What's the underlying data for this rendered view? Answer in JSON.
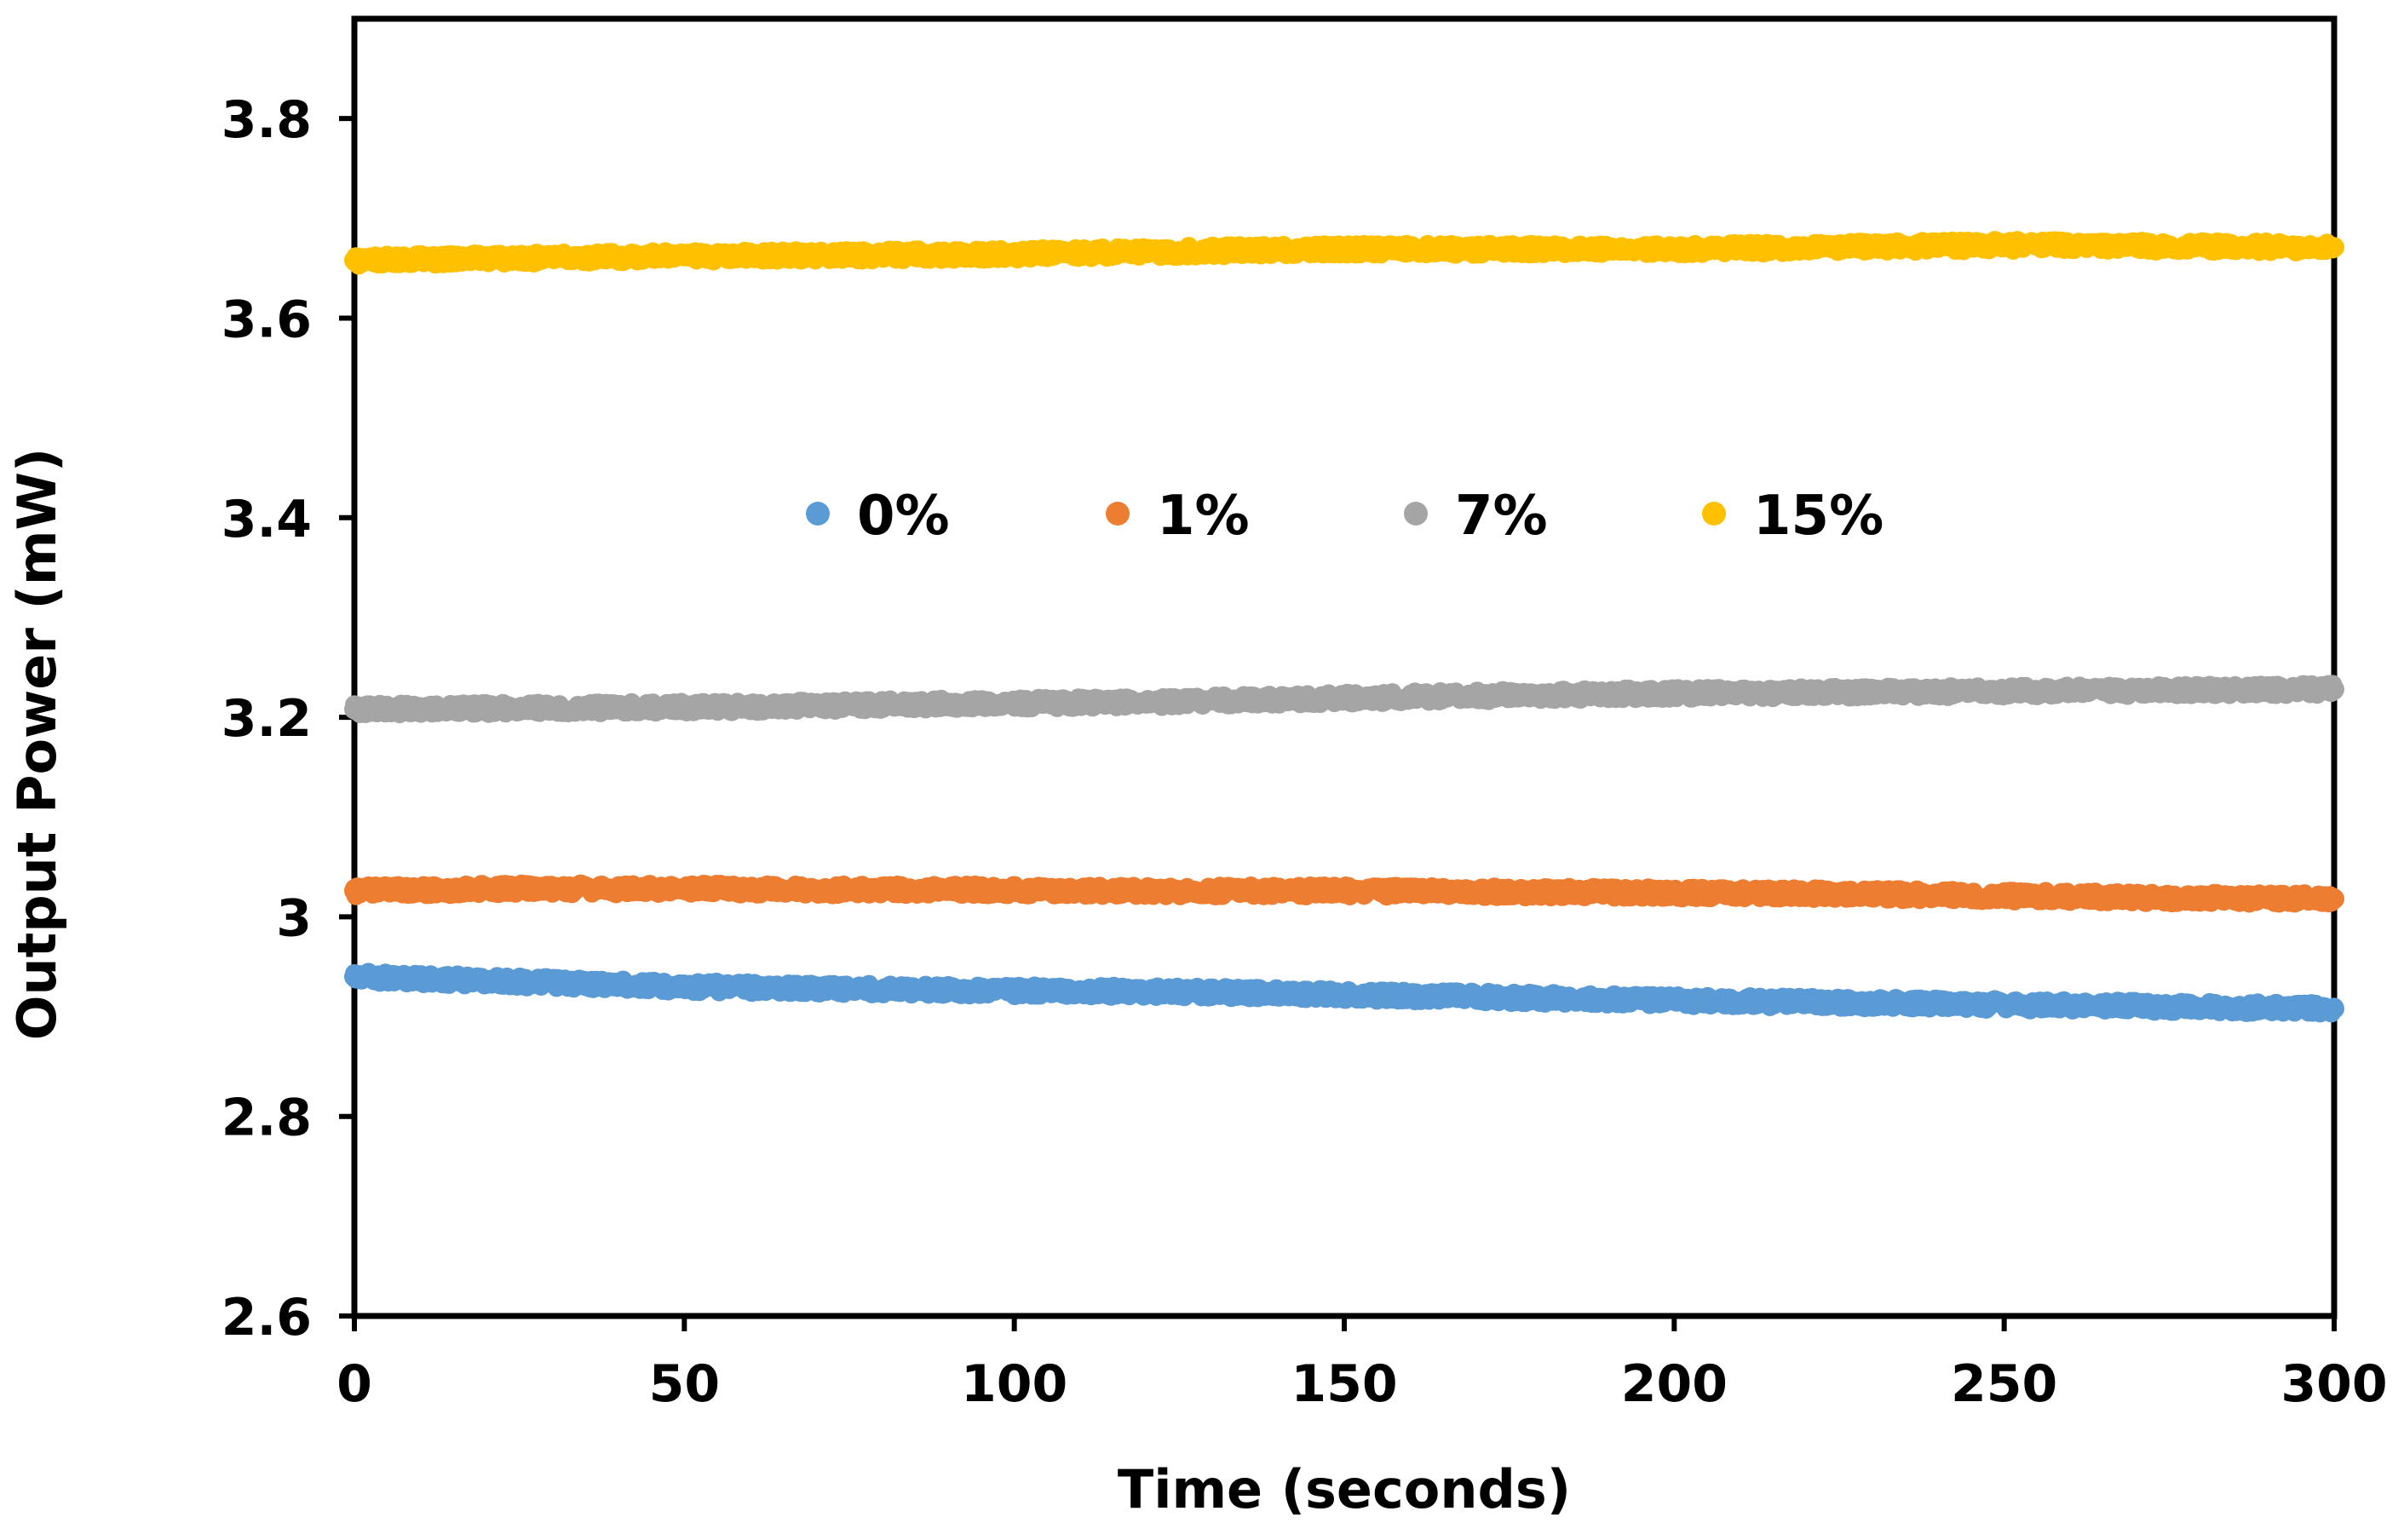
{
  "chart_data": {
    "type": "scatter",
    "title": "",
    "xlabel": "Time (seconds)",
    "ylabel": "Output Power (mW)",
    "xlim": [
      0,
      300
    ],
    "ylim": [
      2.6,
      3.9
    ],
    "xticks": [
      0,
      50,
      100,
      150,
      200,
      250,
      300
    ],
    "yticks": [
      2.6,
      2.8,
      3.0,
      3.2,
      3.4,
      3.6,
      3.8
    ],
    "xtick_labels": [
      "0",
      "50",
      "100",
      "150",
      "200",
      "250",
      "300"
    ],
    "ytick_labels": [
      "2.6",
      "2.8",
      "3",
      "3.2",
      "3.4",
      "3.6",
      "3.8"
    ],
    "grid": false,
    "legend": {
      "placement": "upper-center-inside",
      "orientation": "horizontal"
    },
    "series": [
      {
        "name": "0%",
        "color": "#5B9BD5",
        "x": [
          0,
          25,
          50,
          75,
          100,
          125,
          150,
          175,
          200,
          225,
          250,
          275,
          300
        ],
        "y": [
          2.94,
          2.935,
          2.93,
          2.928,
          2.926,
          2.925,
          2.922,
          2.919,
          2.916,
          2.914,
          2.912,
          2.91,
          2.908
        ]
      },
      {
        "name": "1%",
        "color": "#ED7D31",
        "x": [
          0,
          25,
          50,
          75,
          100,
          125,
          150,
          175,
          200,
          225,
          250,
          275,
          300
        ],
        "y": [
          3.026,
          3.028,
          3.028,
          3.027,
          3.027,
          3.026,
          3.026,
          3.025,
          3.024,
          3.023,
          3.021,
          3.019,
          3.018
        ]
      },
      {
        "name": "7%",
        "color": "#A5A5A5",
        "x": [
          0,
          25,
          50,
          75,
          100,
          125,
          150,
          175,
          200,
          225,
          250,
          275,
          300
        ],
        "y": [
          3.208,
          3.209,
          3.21,
          3.212,
          3.214,
          3.216,
          3.219,
          3.222,
          3.224,
          3.225,
          3.226,
          3.227,
          3.228
        ]
      },
      {
        "name": "15%",
        "color": "#FFC000",
        "x": [
          0,
          25,
          50,
          75,
          100,
          125,
          150,
          175,
          200,
          225,
          250,
          275,
          300
        ],
        "y": [
          3.658,
          3.66,
          3.662,
          3.663,
          3.664,
          3.667,
          3.669,
          3.669,
          3.669,
          3.671,
          3.673,
          3.672,
          3.671
        ]
      }
    ]
  }
}
